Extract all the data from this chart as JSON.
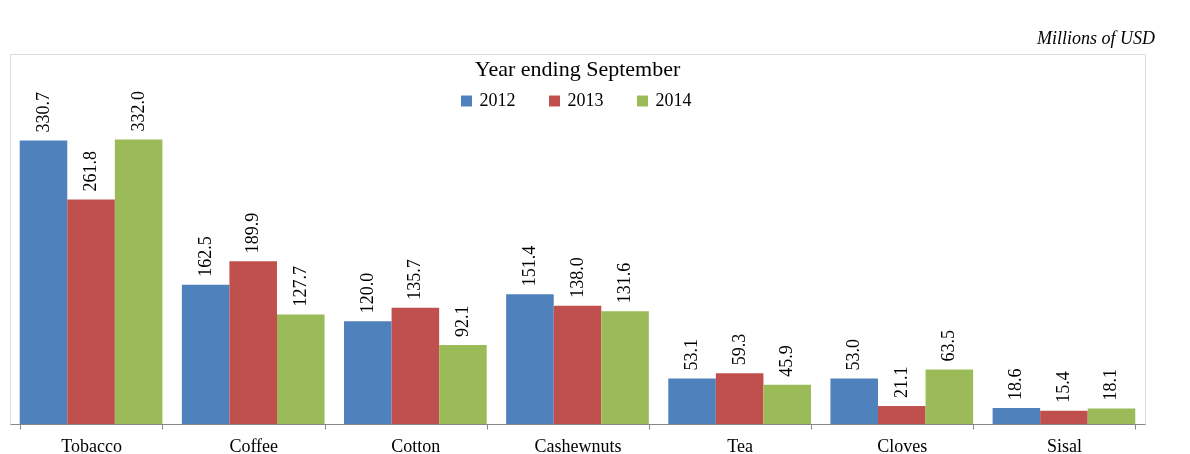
{
  "chart_data": {
    "type": "bar",
    "title": "Year ending September",
    "annotations": [
      "Millions of USD"
    ],
    "categories": [
      "Tobacco",
      "Coffee",
      "Cotton",
      "Cashewnuts",
      "Tea",
      "Cloves",
      "Sisal"
    ],
    "series": [
      {
        "name": "2012",
        "color": "#4f81bd",
        "values": [
          330.7,
          162.5,
          120.0,
          151.4,
          53.1,
          53.0,
          18.6
        ],
        "value_labels": [
          "330.7",
          "162.5",
          "120.0",
          "151.4",
          "53.1",
          "53.0",
          "18.6"
        ]
      },
      {
        "name": "2013",
        "color": "#c0504d",
        "values": [
          261.8,
          189.9,
          135.7,
          138.0,
          59.3,
          21.1,
          15.4
        ],
        "value_labels": [
          "261.8",
          "189.9",
          "135.7",
          "138.0",
          "59.3",
          "21.1",
          "15.4"
        ]
      },
      {
        "name": "2014",
        "color": "#9bbb59",
        "values": [
          332.0,
          127.7,
          92.1,
          131.6,
          45.9,
          63.5,
          18.1
        ],
        "value_labels": [
          "332.0",
          "127.7",
          "92.1",
          "131.6",
          "45.9",
          "63.5",
          "18.1"
        ]
      }
    ],
    "legend": "top",
    "grid": false,
    "relative": false
  }
}
